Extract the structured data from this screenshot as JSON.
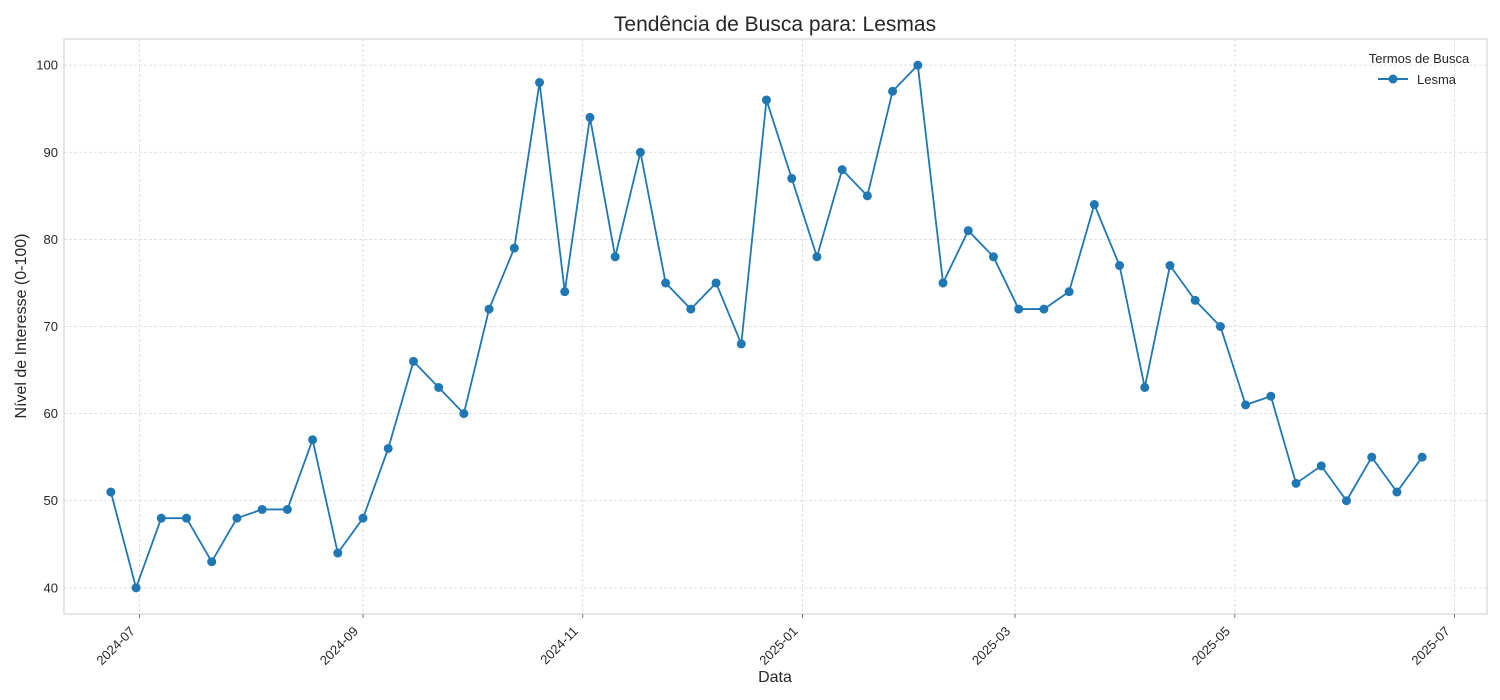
{
  "chart_data": {
    "type": "line",
    "title": "Tendência de Busca para: Lesmas",
    "xlabel": "Data",
    "ylabel": "Nível de Interesse (0-100)",
    "xlim": [
      "2024-06-10",
      "2025-07-10"
    ],
    "ylim": [
      37,
      103
    ],
    "x_ticks": [
      "2024-07",
      "2024-09",
      "2024-11",
      "2025-01",
      "2025-03",
      "2025-05",
      "2025-07"
    ],
    "y_ticks": [
      40,
      50,
      60,
      70,
      80,
      90,
      100
    ],
    "grid": true,
    "legend": {
      "title": "Termos de Busca",
      "placement": "top-right"
    },
    "colors": {
      "series": "#1f77b4"
    },
    "x": [
      "2024-06-23",
      "2024-06-30",
      "2024-07-07",
      "2024-07-14",
      "2024-07-21",
      "2024-07-28",
      "2024-08-04",
      "2024-08-11",
      "2024-08-18",
      "2024-08-25",
      "2024-09-01",
      "2024-09-08",
      "2024-09-15",
      "2024-09-22",
      "2024-09-29",
      "2024-10-06",
      "2024-10-13",
      "2024-10-20",
      "2024-10-27",
      "2024-11-03",
      "2024-11-10",
      "2024-11-17",
      "2024-11-24",
      "2024-12-01",
      "2024-12-08",
      "2024-12-15",
      "2024-12-22",
      "2024-12-29",
      "2025-01-05",
      "2025-01-12",
      "2025-01-19",
      "2025-01-26",
      "2025-02-02",
      "2025-02-09",
      "2025-02-16",
      "2025-02-23",
      "2025-03-02",
      "2025-03-09",
      "2025-03-16",
      "2025-03-23",
      "2025-03-30",
      "2025-04-06",
      "2025-04-13",
      "2025-04-20",
      "2025-04-27",
      "2025-05-04",
      "2025-05-11",
      "2025-05-18",
      "2025-05-25",
      "2025-06-01",
      "2025-06-08",
      "2025-06-15",
      "2025-06-22"
    ],
    "series": [
      {
        "name": "Lesma",
        "values": [
          51,
          40,
          48,
          48,
          43,
          48,
          49,
          49,
          57,
          44,
          48,
          56,
          66,
          63,
          60,
          72,
          79,
          98,
          74,
          94,
          78,
          90,
          75,
          72,
          75,
          68,
          96,
          87,
          78,
          88,
          85,
          97,
          100,
          75,
          81,
          78,
          72,
          72,
          74,
          84,
          77,
          63,
          77,
          73,
          70,
          61,
          62,
          52,
          54,
          50,
          55,
          51,
          55
        ]
      }
    ]
  }
}
